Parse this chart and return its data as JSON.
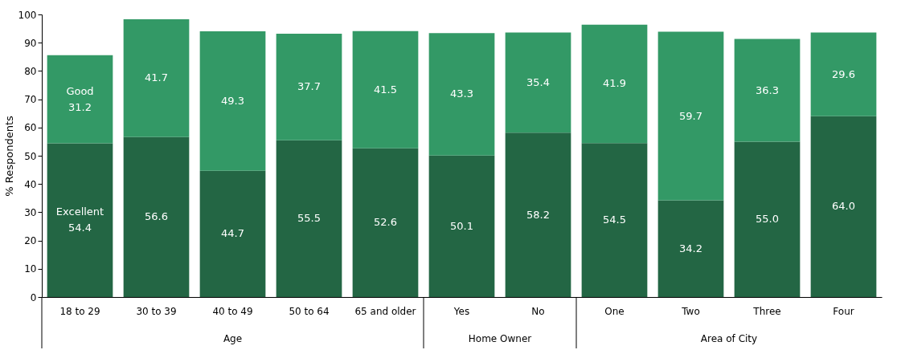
{
  "chart_data": {
    "type": "bar",
    "stacked": true,
    "ylabel": "% Respondents",
    "categories": [
      "18 to 29",
      "30 to 39",
      "40 to 49",
      "50 to 64",
      "65 and older",
      "Yes",
      "No",
      "One",
      "Two",
      "Three",
      "Four"
    ],
    "series": [
      {
        "name": "Excellent",
        "color": "#236644",
        "values": [
          54.4,
          56.6,
          44.7,
          55.5,
          52.6,
          50.1,
          58.2,
          54.5,
          34.2,
          55.0,
          64.0
        ],
        "value_labels": [
          "54.4",
          "56.6",
          "44.7",
          "55.5",
          "52.6",
          "50.1",
          "58.2",
          "54.5",
          "34.2",
          "55.0",
          "64.0"
        ]
      },
      {
        "name": "Good",
        "color": "#339966",
        "values": [
          31.2,
          41.7,
          49.3,
          37.7,
          41.5,
          43.3,
          35.4,
          41.9,
          59.7,
          36.3,
          29.6
        ],
        "value_labels": [
          "31.2",
          "41.7",
          "49.3",
          "37.7",
          "41.5",
          "43.3",
          "35.4",
          "41.9",
          "59.7",
          "36.3",
          "29.6"
        ]
      }
    ],
    "annotations": [
      "Age",
      "Home Owner",
      "Area of City"
    ],
    "ylim": [
      0,
      100
    ],
    "yticks": [
      0,
      10,
      20,
      30,
      40,
      50,
      60,
      70,
      80,
      90,
      100
    ],
    "grid": false,
    "legend": false
  }
}
